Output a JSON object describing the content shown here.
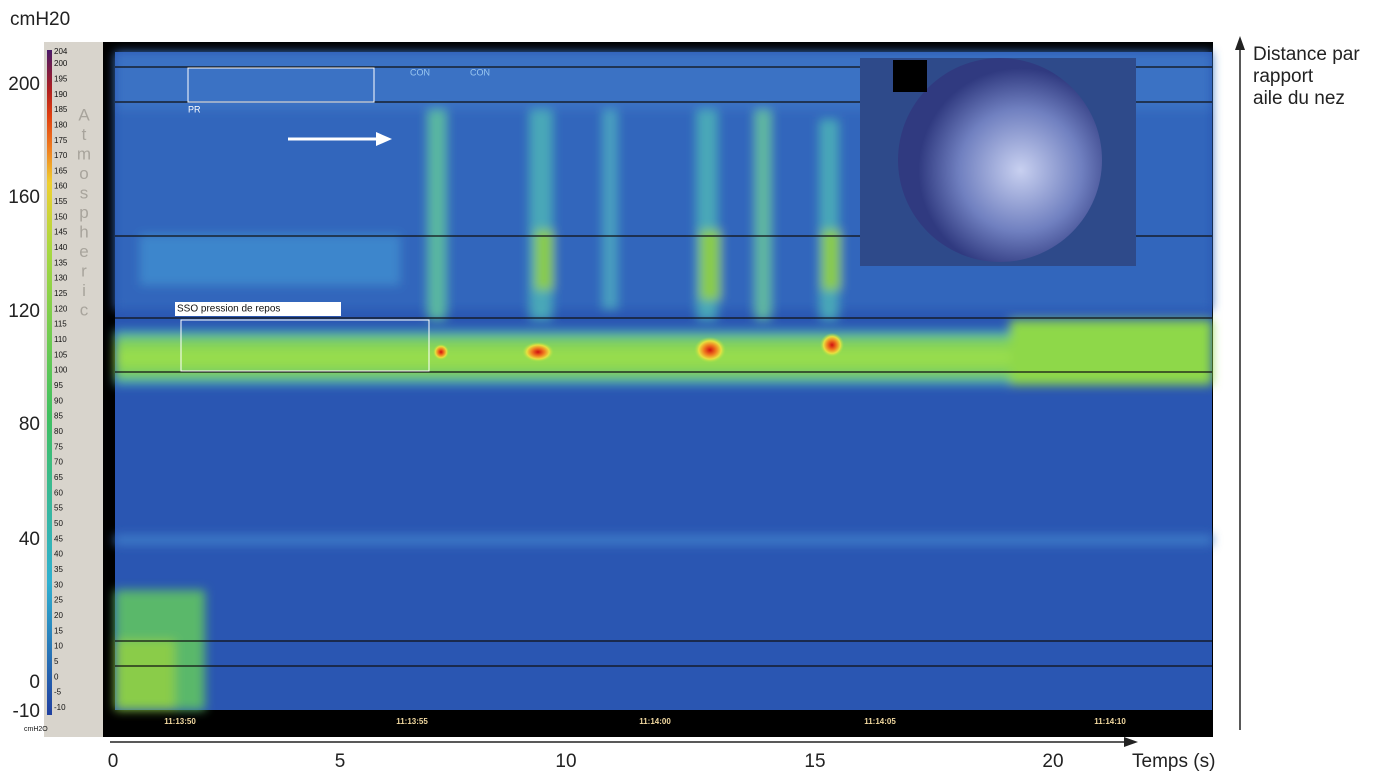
{
  "y_axis": {
    "label": "cmH20",
    "ticks": [
      "200",
      "160",
      "120",
      "80",
      "40",
      "0",
      "-10"
    ]
  },
  "right_axis": {
    "label_lines": [
      "Distance par",
      "rapport",
      "aile du nez"
    ]
  },
  "x_axis": {
    "label": "Temps (s)",
    "ticks": [
      "0",
      "5",
      "10",
      "15",
      "20"
    ]
  },
  "colorbar": {
    "ticks": [
      204,
      200,
      195,
      190,
      185,
      180,
      175,
      170,
      165,
      160,
      155,
      150,
      145,
      140,
      135,
      130,
      125,
      120,
      115,
      110,
      105,
      100,
      95,
      90,
      85,
      80,
      75,
      70,
      65,
      60,
      55,
      50,
      45,
      40,
      35,
      30,
      25,
      20,
      15,
      10,
      5,
      0,
      -5,
      -10
    ],
    "unit": "cmH2O",
    "letters": [
      "A",
      "t",
      "m",
      "o",
      "s",
      "p",
      "h",
      "e",
      "r",
      "i",
      "c"
    ]
  },
  "timestamps": [
    "11:13:50",
    "11:13:55",
    "11:14:00",
    "11:14:05",
    "11:14:10"
  ],
  "annotations": {
    "resting_box": "SSO pression de repos",
    "pr_box": "PR",
    "markers": [
      "CON",
      "CON"
    ]
  }
}
